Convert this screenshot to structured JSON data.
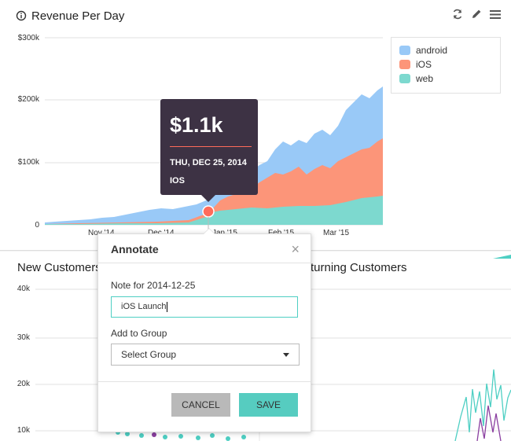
{
  "revenue_card": {
    "title": "Revenue Per Day",
    "info_icon": "info-icon",
    "tool_icons": [
      "refresh-icon",
      "pencil-icon",
      "menu-icon"
    ],
    "chart_data": {
      "type": "area",
      "title": "Revenue Per Day",
      "y_ticks": [
        "$300k",
        "$200k",
        "$100k",
        "0"
      ],
      "ylim": [
        0,
        300000
      ],
      "x_ticks": [
        "Nov '14",
        "Dec '14",
        "Jan '15",
        "Feb '15",
        "Mar '15"
      ],
      "legend_position": "top-right",
      "series": [
        {
          "name": "android",
          "color": "#99c9f7"
        },
        {
          "name": "iOS",
          "color": "#fc9579"
        },
        {
          "name": "web",
          "color": "#7dd9cf"
        }
      ],
      "highlight": {
        "date": "2014-12-25",
        "value": 1100
      }
    },
    "tooltip": {
      "value": "$1.1k",
      "date": "THU, DEC 25, 2014",
      "series": "IOS"
    }
  },
  "new_customers_card": {
    "title": "New Customers",
    "y_ticks": [
      "40k",
      "30k",
      "20k",
      "10k"
    ]
  },
  "returning_customers_card": {
    "title": "Returning Customers",
    "visible_title": "turning Customers"
  },
  "annotate_modal": {
    "title": "Annotate",
    "close": "×",
    "note_label": "Note for 2014-12-25",
    "note_value": "iOS Launch",
    "group_label": "Add to Group",
    "group_select_value": "Select Group",
    "cancel_label": "CANCEL",
    "save_label": "SAVE"
  },
  "colors": {
    "accent": "#56ccc0",
    "tooltip_bg": "#3d3244",
    "highlight": "#ff6b5a"
  }
}
